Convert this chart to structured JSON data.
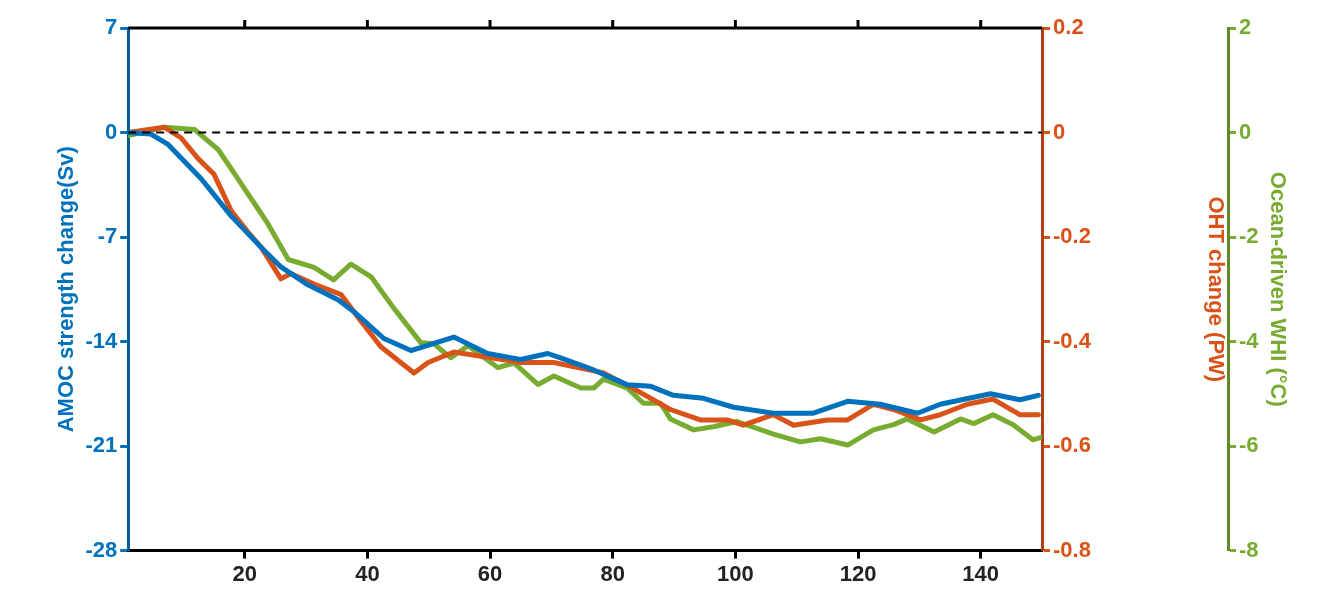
{
  "chart_data": {
    "type": "line",
    "ylabel": "AMOC strength change(Sv)",
    "y2label": "OHT change (PW)",
    "y3label": "Ocean-driven WHI (°C)",
    "xlim": [
      1,
      150
    ],
    "xticks": [
      20,
      40,
      60,
      80,
      100,
      120,
      140
    ],
    "ylim": [
      -28,
      7
    ],
    "yticks": [
      -28,
      -21,
      -14,
      -7,
      0,
      7
    ],
    "y2lim": [
      -0.8,
      0.2
    ],
    "y2ticks": [
      -0.8,
      -0.6,
      -0.4,
      -0.2,
      0,
      0.2
    ],
    "y3lim": [
      -8,
      2
    ],
    "y3ticks": [
      -8,
      -6,
      -4,
      -2,
      0,
      2
    ],
    "grid": false,
    "legend": false,
    "marker": "none",
    "line_style": "solid",
    "ref_lines": [
      {
        "axis": "y",
        "value": 0,
        "color": "#000000",
        "line_style": "dashed"
      }
    ],
    "series": [
      {
        "color": "#0072bd",
        "x": [
          1,
          4.7,
          7.5,
          12.9,
          17.8,
          22.7,
          25.9,
          30.3,
          35.2,
          37.8,
          42.7,
          47.1,
          54.1,
          59.6,
          65,
          69.4,
          71.5,
          76.9,
          82.4,
          86.2,
          89.9,
          94.8,
          99.7,
          106.2,
          112.7,
          118.3,
          123.6,
          129.7,
          133.4,
          141.6,
          146.4,
          149.4
        ],
        "values": [
          0,
          -0.1,
          -0.8,
          -3.1,
          -5.6,
          -7.7,
          -9.0,
          -10.2,
          -11.2,
          -12.0,
          -13.8,
          -14.6,
          -13.7,
          -14.8,
          -15.2,
          -14.8,
          -15.1,
          -15.9,
          -16.9,
          -17.0,
          -17.6,
          -17.8,
          -18.4,
          -18.8,
          -18.8,
          -18.0,
          -18.2,
          -18.8,
          -18.2,
          -17.5,
          -17.9,
          -17.6
        ]
      },
      {
        "color": "#d95319",
        "axis": "y2",
        "x": [
          1,
          6.9,
          9.6,
          12.4,
          15,
          17.8,
          20.5,
          22.7,
          25.9,
          27.5,
          31.3,
          35.7,
          38.9,
          42.2,
          47.6,
          49.9,
          54.1,
          59.6,
          65,
          70.4,
          78.5,
          83.4,
          89.4,
          94.3,
          98.7,
          101.3,
          106.2,
          109.5,
          115,
          118.3,
          122.5,
          125.8,
          130.2,
          133.4,
          137.8,
          142,
          146.4,
          149.4
        ],
        "values": [
          0,
          0.01,
          -0.01,
          -0.05,
          -0.08,
          -0.15,
          -0.19,
          -0.22,
          -0.28,
          -0.27,
          -0.29,
          -0.31,
          -0.36,
          -0.41,
          -0.46,
          -0.44,
          -0.42,
          -0.43,
          -0.44,
          -0.44,
          -0.46,
          -0.49,
          -0.53,
          -0.55,
          -0.55,
          -0.56,
          -0.54,
          -0.56,
          -0.55,
          -0.55,
          -0.52,
          -0.53,
          -0.55,
          -0.54,
          -0.52,
          -0.51,
          -0.54,
          -0.54
        ]
      },
      {
        "color": "#77ac30",
        "axis": "y3",
        "x": [
          1,
          6.9,
          11.8,
          15.7,
          18.3,
          23.8,
          27.1,
          31.3,
          34.5,
          37.3,
          40.6,
          44.3,
          48.7,
          50.8,
          53.6,
          56.4,
          61.3,
          63.9,
          67.8,
          70.4,
          74.8,
          76.9,
          78.5,
          82.4,
          85,
          87.8,
          89.4,
          93.2,
          96.4,
          100.3,
          106.2,
          110.6,
          113.9,
          118.3,
          122.5,
          125.8,
          128,
          132.4,
          136.7,
          138.9,
          142,
          145.3,
          148.5,
          150
        ],
        "values": [
          -0.06,
          0.1,
          0.06,
          -0.33,
          -0.78,
          -1.75,
          -2.43,
          -2.58,
          -2.82,
          -2.52,
          -2.76,
          -3.36,
          -4.02,
          -4.04,
          -4.31,
          -4.08,
          -4.5,
          -4.41,
          -4.82,
          -4.66,
          -4.89,
          -4.89,
          -4.72,
          -4.89,
          -5.18,
          -5.18,
          -5.48,
          -5.69,
          -5.63,
          -5.53,
          -5.77,
          -5.92,
          -5.86,
          -5.98,
          -5.69,
          -5.59,
          -5.48,
          -5.73,
          -5.48,
          -5.57,
          -5.4,
          -5.59,
          -5.88,
          -5.83
        ]
      }
    ]
  }
}
